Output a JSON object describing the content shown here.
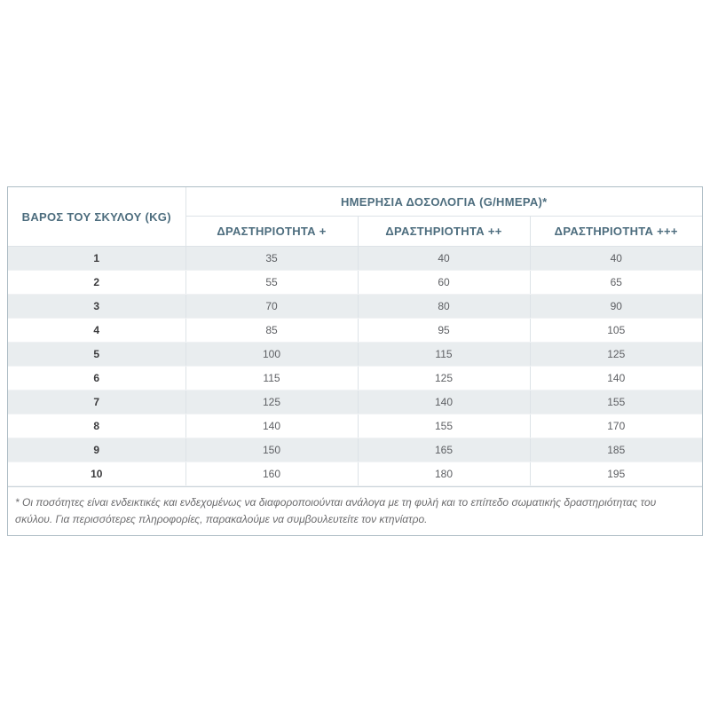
{
  "colors": {
    "header_text": "#4d6d7e",
    "weight_text": "#3b3b3d",
    "value_text": "#5d5f63",
    "row_stripe": "#e9edef",
    "outer_border": "#aebdc5",
    "inner_border": "#dde3e7",
    "footnote_text": "#6b6b6d"
  },
  "table": {
    "weight_header": "ΒΑΡΟΣ ΤΟΥ ΣΚΥΛΟΥ (KG)",
    "dosage_group_header": "ΗΜΕΡΗΣΙΑ ΔΟΣΟΛΟΓΙΑ (G/ΗΜΕΡΑ)*",
    "activity_headers": [
      "ΔΡΑΣΤΗΡΙΟΤΗΤΑ +",
      "ΔΡΑΣΤΗΡΙΟΤΗΤΑ ++",
      "ΔΡΑΣΤΗΡΙΟΤΗΤΑ +++"
    ],
    "rows": [
      {
        "weight": "1",
        "values": [
          "35",
          "40",
          "40"
        ]
      },
      {
        "weight": "2",
        "values": [
          "55",
          "60",
          "65"
        ]
      },
      {
        "weight": "3",
        "values": [
          "70",
          "80",
          "90"
        ]
      },
      {
        "weight": "4",
        "values": [
          "85",
          "95",
          "105"
        ]
      },
      {
        "weight": "5",
        "values": [
          "100",
          "115",
          "125"
        ]
      },
      {
        "weight": "6",
        "values": [
          "115",
          "125",
          "140"
        ]
      },
      {
        "weight": "7",
        "values": [
          "125",
          "140",
          "155"
        ]
      },
      {
        "weight": "8",
        "values": [
          "140",
          "155",
          "170"
        ]
      },
      {
        "weight": "9",
        "values": [
          "150",
          "165",
          "185"
        ]
      },
      {
        "weight": "10",
        "values": [
          "160",
          "180",
          "195"
        ]
      }
    ]
  },
  "footnote": "* Οι ποσότητες είναι ενδεικτικές και ενδεχομένως να διαφοροποιούνται ανάλογα με τη φυλή και το επίπεδο σωματικής δραστηριότητας του σκύλου. Για περισσότερες πληροφορίες, παρακαλούμε να συμβουλευτείτε τον κτηνίατρο."
}
